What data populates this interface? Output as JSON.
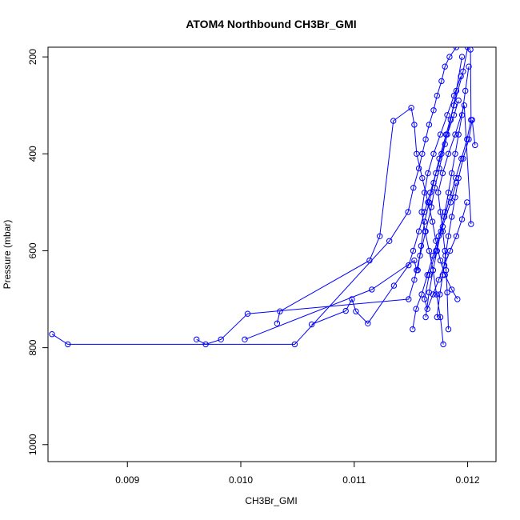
{
  "chart_data": {
    "type": "line",
    "title": "ATOM4 Northbound CH3Br_GMI",
    "xlabel": "CH3Br_GMI",
    "ylabel": "Pressure (mbar)",
    "xlim": [
      0.0083,
      0.01225
    ],
    "ylim": [
      1035,
      180
    ],
    "y_reversed": true,
    "grid": false,
    "color": "#0000ff",
    "x_ticks": [
      {
        "value": 0.009,
        "label": "0.009"
      },
      {
        "value": 0.01,
        "label": "0.010"
      },
      {
        "value": 0.011,
        "label": "0.011"
      },
      {
        "value": 0.012,
        "label": "0.012"
      }
    ],
    "y_ticks": [
      {
        "value": 200,
        "label": "200"
      },
      {
        "value": 400,
        "label": "400"
      },
      {
        "value": 600,
        "label": "600"
      },
      {
        "value": 800,
        "label": "800"
      },
      {
        "value": 1000,
        "label": "1000"
      }
    ],
    "series": [
      {
        "x": [
          0.008335,
          0.008475,
          0.010475,
          0.01131,
          0.011475,
          0.011522,
          0.01157,
          0.0116,
          0.01163,
          0.01166,
          0.0117,
          0.01173,
          0.01177,
          0.0118,
          0.01184,
          0.0119
        ],
        "y": [
          772,
          793,
          793,
          580,
          520,
          470,
          430,
          400,
          370,
          340,
          310,
          280,
          250,
          220,
          200,
          180
        ]
      },
      {
        "x": [
          0.00961,
          0.00969,
          0.009825,
          0.01006,
          0.01148,
          0.01153,
          0.01158,
          0.01163,
          0.01168,
          0.01171,
          0.01175,
          0.0118,
          0.01185,
          0.0119,
          0.01195
        ],
        "y": [
          783,
          793,
          783,
          730,
          700,
          660,
          610,
          560,
          510,
          470,
          430,
          380,
          330,
          270,
          200
        ]
      },
      {
        "x": [
          0.010035,
          0.011155,
          0.01153,
          0.01155,
          0.01156,
          0.01159,
          0.01162,
          0.01166,
          0.0117,
          0.01175,
          0.01181,
          0.01188,
          0.01196,
          0.012
        ],
        "y": [
          783,
          680,
          620,
          640,
          640,
          590,
          540,
          500,
          460,
          410,
          360,
          300,
          230,
          180
        ]
      },
      {
        "x": [
          0.01032,
          0.010345,
          0.011135,
          0.011225,
          0.011345,
          0.011503,
          0.01153,
          0.01155,
          0.0116,
          0.01165,
          0.01169,
          0.01172,
          0.01176,
          0.0118,
          0.01186,
          0.01191
        ],
        "y": [
          750,
          725,
          620,
          570,
          332,
          305,
          340,
          400,
          450,
          500,
          540,
          580,
          620,
          650,
          680,
          700
        ]
      },
      {
        "x": [
          0.010625,
          0.010925,
          0.01098,
          0.011015,
          0.01112,
          0.01135,
          0.01148,
          0.01152,
          0.01157,
          0.01162,
          0.01167,
          0.01172,
          0.01177,
          0.01182,
          0.01188,
          0.01192
        ],
        "y": [
          752,
          724,
          700,
          725,
          750,
          672,
          630,
          600,
          560,
          520,
          480,
          440,
          400,
          360,
          320,
          290
        ]
      },
      {
        "x": [
          0.011515,
          0.011545,
          0.011595,
          0.011645,
          0.011695,
          0.011745,
          0.011795,
          0.011845,
          0.011895,
          0.011945,
          0.011995,
          0.01203,
          0.012025
        ],
        "y": [
          762,
          720,
          690,
          650,
          610,
          570,
          530,
          490,
          450,
          410,
          370,
          330,
          185
        ]
      },
      {
        "x": [
          0.01163,
          0.01166,
          0.011695,
          0.01173,
          0.011765,
          0.0118,
          0.01183,
          0.01186,
          0.01189,
          0.01192,
          0.01195,
          0.01198,
          0.01201
        ],
        "y": [
          737,
          686,
          640,
          600,
          560,
          520,
          480,
          440,
          400,
          360,
          320,
          270,
          220
        ]
      },
      {
        "x": [
          0.01173,
          0.011755,
          0.01178,
          0.011805,
          0.01183,
          0.01186,
          0.01189,
          0.01192,
          0.01196,
          0.01201,
          0.01204,
          0.012065
        ],
        "y": [
          737,
          690,
          650,
          610,
          570,
          530,
          490,
          450,
          410,
          370,
          330,
          382
        ]
      },
      {
        "x": [
          0.011785,
          0.01176,
          0.011725,
          0.011695,
          0.01166,
          0.011625,
          0.011595,
          0.01162,
          0.01165,
          0.0117,
          0.01176,
          0.01182,
          0.01188,
          0.01194
        ],
        "y": [
          793,
          737,
          690,
          640,
          600,
          560,
          520,
          480,
          440,
          400,
          360,
          320,
          280,
          240
        ]
      },
      {
        "x": [
          0.01183,
          0.01182,
          0.01181,
          0.0118,
          0.01178,
          0.01176,
          0.01174,
          0.01178,
          0.01183,
          0.01189,
          0.01197,
          0.01203
        ],
        "y": [
          762,
          686,
          640,
          600,
          560,
          520,
          480,
          440,
          400,
          360,
          300,
          545
        ]
      },
      {
        "x": [
          0.011995,
          0.01195,
          0.0119,
          0.011845,
          0.011795,
          0.011745,
          0.011695,
          0.011645,
          0.01162,
          0.01166,
          0.01172,
          0.01178,
          0.01185,
          0.0119
        ],
        "y": [
          500,
          535,
          570,
          600,
          630,
          660,
          690,
          720,
          700,
          650,
          600,
          550,
          500,
          460
        ]
      }
    ]
  }
}
